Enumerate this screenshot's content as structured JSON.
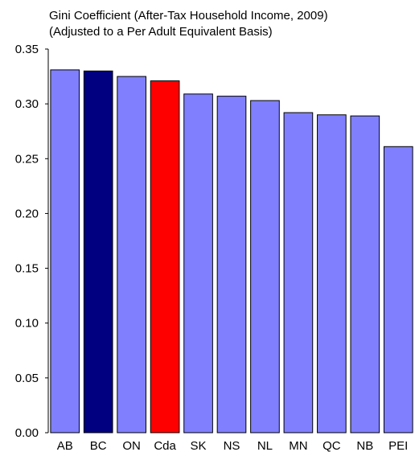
{
  "chart_data": {
    "type": "bar",
    "title": "Gini Coefficient (After-Tax Household Income, 2009)",
    "subtitle": "(Adjusted to a Per Adult Equivalent Basis)",
    "xlabel": "",
    "ylabel": "",
    "ylim": [
      0,
      0.35
    ],
    "yticks": [
      "0.00",
      "0.05",
      "0.10",
      "0.15",
      "0.20",
      "0.25",
      "0.30",
      "0.35"
    ],
    "grid": false,
    "legend": "none",
    "categories": [
      "AB",
      "BC",
      "ON",
      "Cda",
      "SK",
      "NS",
      "NL",
      "MN",
      "QC",
      "NB",
      "PEI"
    ],
    "values": [
      0.331,
      0.33,
      0.325,
      0.321,
      0.309,
      0.307,
      0.303,
      0.292,
      0.29,
      0.289,
      0.261
    ],
    "bar_colors": [
      "#8080ff",
      "#000080",
      "#8080ff",
      "#ff0000",
      "#8080ff",
      "#8080ff",
      "#8080ff",
      "#8080ff",
      "#8080ff",
      "#8080ff",
      "#8080ff"
    ]
  }
}
